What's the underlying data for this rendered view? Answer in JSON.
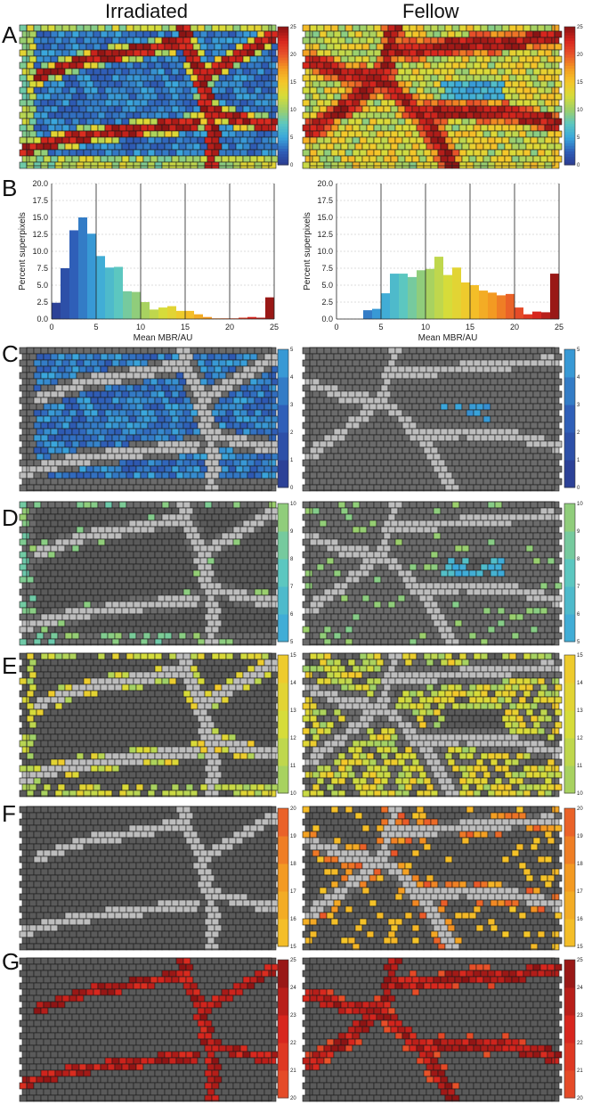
{
  "columns": [
    "Irradiated",
    "Fellow"
  ],
  "row_labels": [
    "A",
    "B",
    "C",
    "D",
    "E",
    "F",
    "G"
  ],
  "colormap": {
    "stops": [
      "#2b3a8f",
      "#2f5fb8",
      "#3aa7dc",
      "#5cc7c0",
      "#9dcf6a",
      "#d6dc3a",
      "#f4c72a",
      "#f39a22",
      "#e8542a",
      "#d7261e",
      "#8a1414"
    ]
  },
  "colorbars": {
    "A": {
      "min": 0,
      "max": 25,
      "ticks": [
        "0",
        "5",
        "10",
        "15",
        "20",
        "25"
      ]
    },
    "C": {
      "min": 0,
      "max": 5,
      "ticks": [
        "0",
        "1",
        "2",
        "3",
        "4",
        "5"
      ]
    },
    "D": {
      "min": 5,
      "max": 10,
      "ticks": [
        "5",
        "6",
        "7",
        "8",
        "9",
        "10"
      ]
    },
    "E": {
      "min": 10,
      "max": 15,
      "ticks": [
        "10",
        "11",
        "12",
        "13",
        "14",
        "15"
      ]
    },
    "F": {
      "min": 15,
      "max": 20,
      "ticks": [
        "15",
        "16",
        "17",
        "18",
        "19",
        "20"
      ]
    },
    "G": {
      "min": 20,
      "max": 25,
      "ticks": [
        "20",
        "21",
        "22",
        "23",
        "24",
        "25"
      ]
    }
  },
  "chart_data": [
    {
      "type": "bar",
      "panel": "B",
      "column": "Irradiated",
      "xlabel": "Mean MBR/AU",
      "ylabel": "Percent superpixels",
      "xlim": [
        0,
        25
      ],
      "ylim": [
        0,
        20
      ],
      "xticks": [
        "0",
        "5",
        "10",
        "15",
        "20",
        "25"
      ],
      "yticks": [
        "0.0",
        "2.5",
        "5.0",
        "7.5",
        "10.0",
        "12.5",
        "15.0",
        "17.5",
        "20.0"
      ],
      "bin_width": 1,
      "x": [
        0,
        1,
        2,
        3,
        4,
        5,
        6,
        7,
        8,
        9,
        10,
        11,
        12,
        13,
        14,
        15,
        16,
        17,
        18,
        19,
        20,
        21,
        22,
        23,
        24
      ],
      "values": [
        2.4,
        7.5,
        13.1,
        15.0,
        12.6,
        9.3,
        7.6,
        7.7,
        4.1,
        4.0,
        2.5,
        1.4,
        1.7,
        1.9,
        1.2,
        1.2,
        0.7,
        0.3,
        0.1,
        0.1,
        0.1,
        0.2,
        0.3,
        0.2,
        3.2
      ],
      "grid": "horizontal dashed plus vertical lines at 5, 10, 15, 20, 25"
    },
    {
      "type": "bar",
      "panel": "B",
      "column": "Fellow",
      "xlabel": "Mean MBR/AU",
      "ylabel": "Percent superpixels",
      "xlim": [
        0,
        25
      ],
      "ylim": [
        0,
        20
      ],
      "xticks": [
        "0",
        "5",
        "10",
        "15",
        "20",
        "25"
      ],
      "yticks": [
        "0.0",
        "2.5",
        "5.0",
        "7.5",
        "10.0",
        "12.5",
        "15.0",
        "17.5",
        "20.0"
      ],
      "bin_width": 1,
      "x": [
        0,
        1,
        2,
        3,
        4,
        5,
        6,
        7,
        8,
        9,
        10,
        11,
        12,
        13,
        14,
        15,
        16,
        17,
        18,
        19,
        20,
        21,
        22,
        23,
        24
      ],
      "values": [
        0,
        0,
        0,
        1.3,
        1.5,
        3.8,
        6.7,
        6.7,
        6.2,
        7.2,
        7.4,
        9.2,
        6.5,
        7.6,
        5.4,
        5.0,
        4.2,
        3.9,
        3.5,
        3.7,
        1.7,
        0.7,
        1.1,
        1.0,
        6.7
      ],
      "grid": "horizontal dashed plus vertical lines at 5, 10, 15, 20, 25"
    }
  ]
}
